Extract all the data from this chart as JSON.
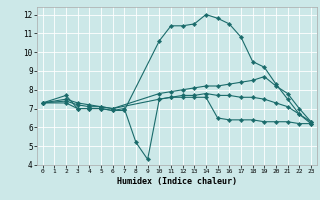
{
  "xlabel": "Humidex (Indice chaleur)",
  "background_color": "#cce8e8",
  "line_color": "#1a6b6b",
  "xlim": [
    -0.5,
    23.5
  ],
  "ylim": [
    4,
    12.4
  ],
  "xticks": [
    0,
    1,
    2,
    3,
    4,
    5,
    6,
    7,
    8,
    9,
    10,
    11,
    12,
    13,
    14,
    15,
    16,
    17,
    18,
    19,
    20,
    21,
    22,
    23
  ],
  "yticks": [
    4,
    5,
    6,
    7,
    8,
    9,
    10,
    11,
    12
  ],
  "series": [
    {
      "x": [
        0,
        2,
        3,
        4,
        5,
        6,
        7,
        10,
        11,
        12,
        13,
        14,
        15,
        16,
        17,
        18,
        19,
        20,
        21,
        22,
        23
      ],
      "y": [
        7.3,
        7.7,
        7.0,
        7.0,
        7.0,
        6.9,
        6.9,
        10.6,
        11.4,
        11.4,
        11.5,
        12.0,
        11.8,
        11.5,
        10.8,
        9.5,
        9.2,
        8.3,
        7.5,
        6.7,
        6.2
      ]
    },
    {
      "x": [
        0,
        2,
        3,
        4,
        5,
        6,
        7,
        8,
        9,
        10,
        11,
        12,
        13,
        14,
        15,
        16,
        17,
        18,
        19,
        20,
        21,
        22,
        23
      ],
      "y": [
        7.3,
        7.3,
        7.0,
        7.0,
        7.0,
        6.9,
        7.0,
        5.2,
        4.3,
        7.5,
        7.6,
        7.6,
        7.6,
        7.6,
        6.5,
        6.4,
        6.4,
        6.4,
        6.3,
        6.3,
        6.3,
        6.2,
        6.2
      ]
    },
    {
      "x": [
        0,
        2,
        3,
        4,
        5,
        6,
        10,
        11,
        12,
        13,
        14,
        15,
        16,
        17,
        18,
        19,
        20,
        21,
        22,
        23
      ],
      "y": [
        7.3,
        7.4,
        7.2,
        7.1,
        7.1,
        7.0,
        7.8,
        7.9,
        8.0,
        8.1,
        8.2,
        8.2,
        8.3,
        8.4,
        8.5,
        8.7,
        8.2,
        7.8,
        7.0,
        6.3
      ]
    },
    {
      "x": [
        0,
        2,
        3,
        4,
        5,
        6,
        10,
        11,
        12,
        13,
        14,
        15,
        16,
        17,
        18,
        19,
        20,
        21,
        22,
        23
      ],
      "y": [
        7.3,
        7.5,
        7.3,
        7.2,
        7.1,
        7.0,
        7.5,
        7.6,
        7.7,
        7.7,
        7.8,
        7.7,
        7.7,
        7.6,
        7.6,
        7.5,
        7.3,
        7.1,
        6.7,
        6.3
      ]
    }
  ]
}
